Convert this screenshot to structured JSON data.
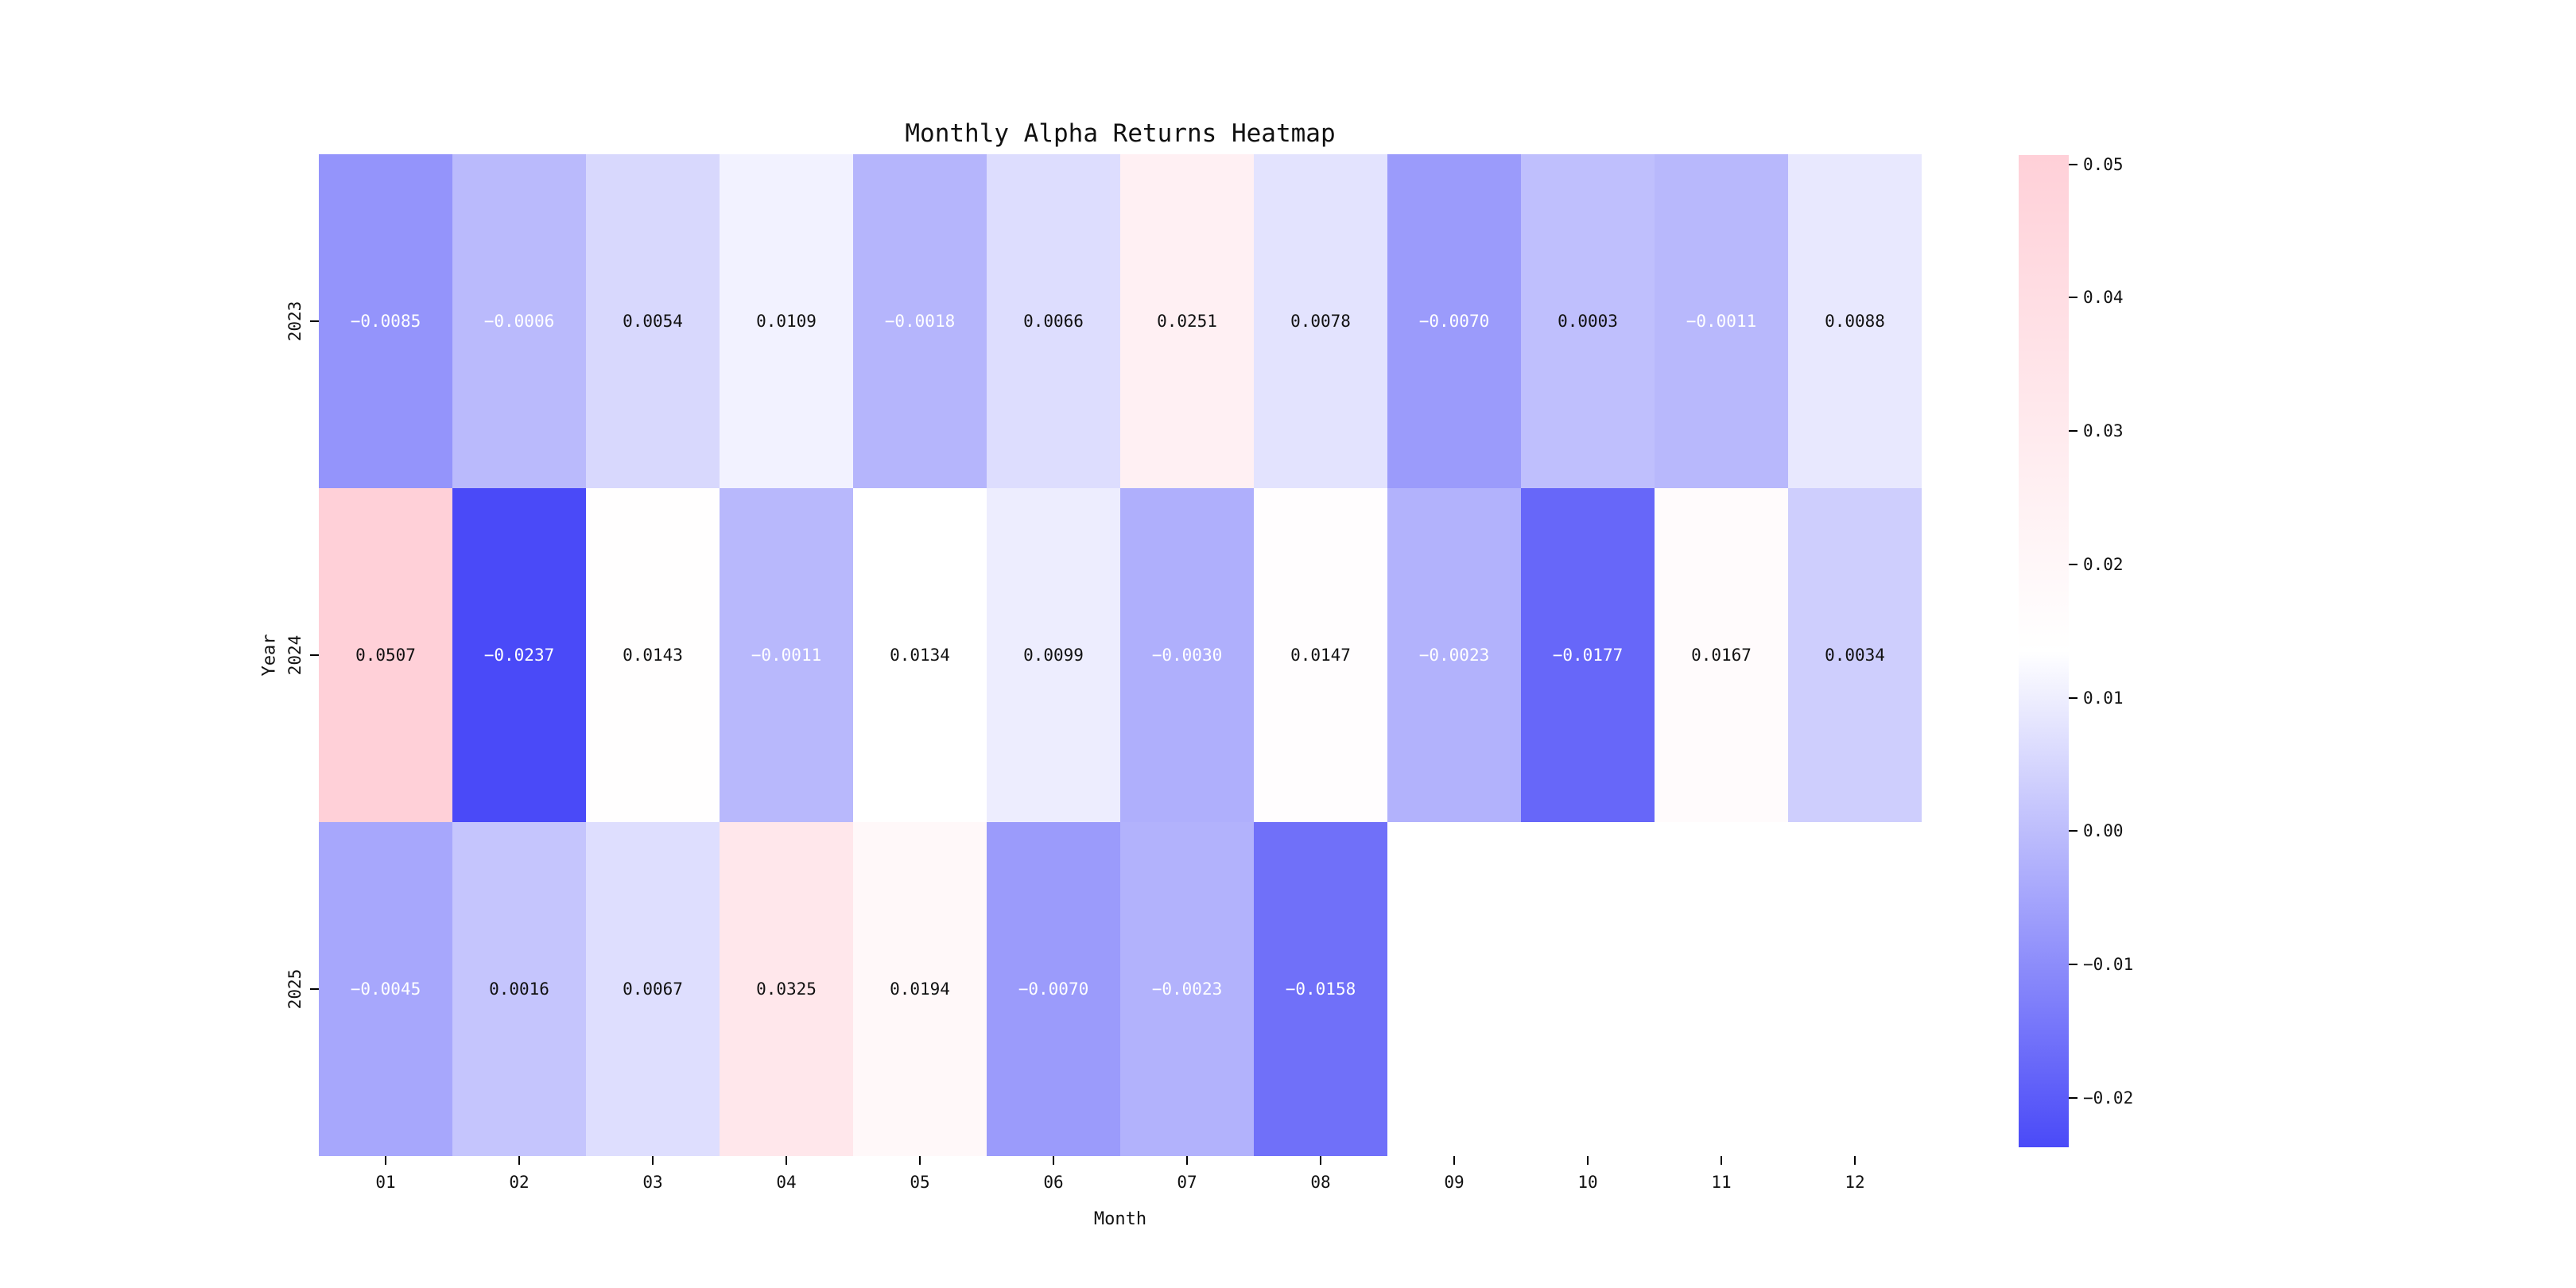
{
  "figure": {
    "background_color": "#ffffff"
  },
  "chart_data": {
    "type": "heatmap",
    "title": "Monthly Alpha Returns Heatmap",
    "xlabel": "Month",
    "ylabel": "Year",
    "x_categories": [
      "01",
      "02",
      "03",
      "04",
      "05",
      "06",
      "07",
      "08",
      "09",
      "10",
      "11",
      "12"
    ],
    "y_categories": [
      "2023",
      "2024",
      "2025"
    ],
    "series": [
      {
        "name": "2023",
        "values": [
          -0.0085,
          -0.0006,
          0.0054,
          0.0109,
          -0.0018,
          0.0066,
          0.0251,
          0.0078,
          -0.007,
          0.0003,
          -0.0011,
          0.0088
        ]
      },
      {
        "name": "2024",
        "values": [
          0.0507,
          -0.0237,
          0.0143,
          -0.0011,
          0.0134,
          0.0099,
          -0.003,
          0.0147,
          -0.0023,
          -0.0177,
          0.0167,
          0.0034
        ]
      },
      {
        "name": "2025",
        "values": [
          -0.0045,
          0.0016,
          0.0067,
          0.0325,
          0.0194,
          -0.007,
          -0.0023,
          -0.0158,
          null,
          null,
          null,
          null
        ]
      }
    ],
    "missing_cells": [
      [
        "2025",
        "09"
      ],
      [
        "2025",
        "10"
      ],
      [
        "2025",
        "11"
      ],
      [
        "2025",
        "12"
      ]
    ],
    "cell_value_decimals": 4,
    "vmin": -0.0237,
    "vmax": 0.0507,
    "colormap": {
      "low_color": "#4A4AF8",
      "mid_color": "#FFFFFF",
      "high_color": "#FFD0D8",
      "midpoint_value": 0.0135
    },
    "colorbar": {
      "position": "right",
      "tick_values": [
        0.05,
        0.04,
        0.03,
        0.02,
        0.01,
        0.0,
        -0.01,
        -0.02
      ],
      "tick_labels": [
        "0.05",
        "0.04",
        "0.03",
        "0.02",
        "0.01",
        "0.00",
        "−0.01",
        "−0.02"
      ]
    },
    "annotations": {
      "negative_text_color": "#ffffff",
      "positive_text_color": "#111111",
      "minus_glyph": "−"
    },
    "grid": false,
    "legend_position": "right-colorbar"
  }
}
